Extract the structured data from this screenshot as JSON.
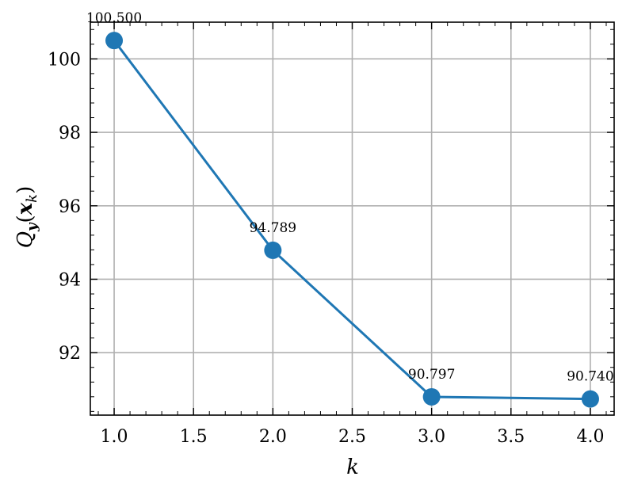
{
  "chart_data": {
    "type": "line",
    "x": [
      1.0,
      2.0,
      3.0,
      4.0
    ],
    "series": [
      {
        "values": [
          100.5,
          94.789,
          90.797,
          90.74
        ]
      }
    ],
    "data_labels": [
      "100.500",
      "94.789",
      "90.797",
      "90.740"
    ],
    "xlabel": "k",
    "ylabel_parts": {
      "main": "Q",
      "sub_bold": "y",
      "open": "(",
      "bold": "x",
      "sub": "k",
      "close": ")"
    },
    "xlim": [
      0.85,
      4.15
    ],
    "ylim": [
      90.3,
      101.0
    ],
    "xticks": [
      1.0,
      1.5,
      2.0,
      2.5,
      3.0,
      3.5,
      4.0
    ],
    "xtick_labels": [
      "1.0",
      "1.5",
      "2.0",
      "2.5",
      "3.0",
      "3.5",
      "4.0"
    ],
    "yticks": [
      92,
      94,
      96,
      98,
      100
    ],
    "ytick_labels": [
      "92",
      "94",
      "96",
      "98",
      "100"
    ],
    "grid": true,
    "color": "#1f77b4"
  }
}
